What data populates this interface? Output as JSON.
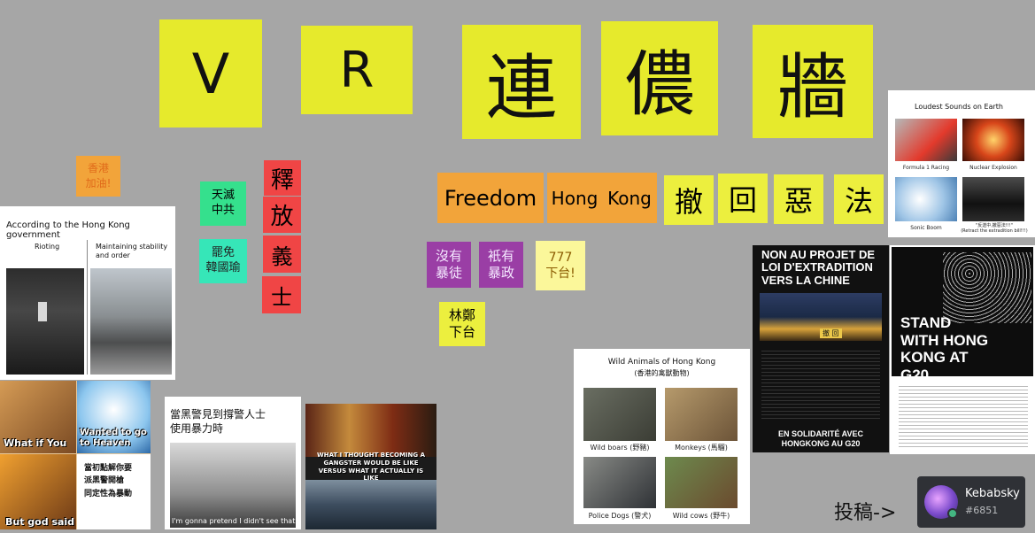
{
  "title_notes": [
    "V",
    "R",
    "連",
    "儂",
    "牆"
  ],
  "notes": {
    "hk_jiayou": "香港\n加油!",
    "tianmie": "天滅\n中共",
    "release_col": [
      "釋",
      "放",
      "義",
      "士"
    ],
    "bahan": "罷免\n韓國瑜",
    "freedom": "Freedom",
    "hong": "Hong",
    "kong": "Kong",
    "withdraw": [
      "撤",
      "回",
      "惡",
      "法"
    ],
    "no_riot": "沒有\n暴徒",
    "only_tyranny": "衹有\n暴政",
    "seven": "777\n下台!",
    "lin_zheng": "林鄭\n下台"
  },
  "rioting_card": {
    "title": "According to the Hong Kong government",
    "left_label": "Rioting",
    "right_label": "Maintaining stability and order"
  },
  "loudest_card": {
    "title": "Loudest Sounds on Earth",
    "captions": [
      "Formula 1 Racing",
      "Nuclear Explosion",
      "Sonic Boom",
      "\"反送中,撤惡法!!!\"\n(Retract the extradition bill!!!)"
    ]
  },
  "meme_card": {
    "top_left": "What if You",
    "top_right": "Wanted to go to Heaven",
    "bottom_left": "But god said",
    "bottom_right": "當初點解你要\n派黑警開槍\n同定性為暴動"
  },
  "police_card": {
    "text": "當黑警見到撐警人士\n使用暴力時",
    "sub": "I'm gonna pretend I didn't see that"
  },
  "gangster_card": {
    "text": "WHAT I THOUGHT BECOMING A GANGSTER WOULD BE LIKE VERSUS WHAT IT ACTUALLY IS LIKE"
  },
  "animals_card": {
    "title": "Wild Animals of Hong Kong",
    "subtitle": "(香港的禽獸動物)",
    "captions": [
      "Wild boars (野豬)",
      "Monkeys (馬騮)",
      "Police Dogs (警犬)",
      "Wild cows (野牛)"
    ]
  },
  "french_poster": {
    "title": "NON AU PROJET DE LOI D'EXTRADITION VERS LA CHINE",
    "banner": "撤 回",
    "footer": "EN SOLIDARITÉ AVEC HONGKONG AU G20"
  },
  "g20_poster": {
    "title": "STAND WITH HONG KONG AT G20"
  },
  "submit": {
    "label": "投稿->",
    "username": "Kebabsky",
    "tag": "#6851"
  }
}
